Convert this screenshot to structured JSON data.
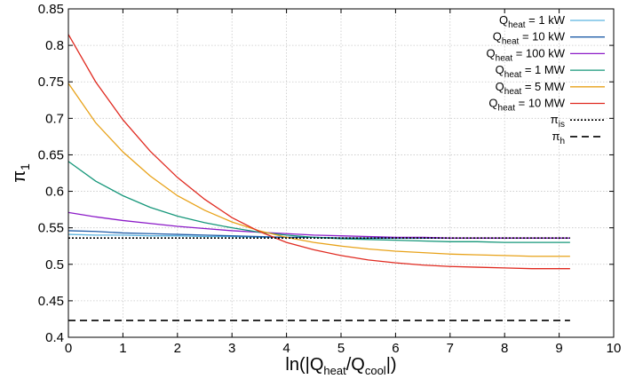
{
  "chart_data": {
    "type": "line",
    "xlabel": {
      "main": "ln(|Q",
      "sub1": "heat",
      "mid": "/Q",
      "sub2": "cool",
      "end": "|)"
    },
    "ylabel": {
      "main": "π",
      "sub": "1"
    },
    "xlim": [
      0,
      10
    ],
    "ylim": [
      0.4,
      0.85
    ],
    "xticks": [
      0,
      1,
      2,
      3,
      4,
      5,
      6,
      7,
      8,
      9,
      10
    ],
    "yticks": [
      0.4,
      0.45,
      0.5,
      0.55,
      0.6,
      0.65,
      0.7,
      0.75,
      0.8,
      0.85
    ],
    "xtick_labels": [
      "0",
      "1",
      "2",
      "3",
      "4",
      "5",
      "6",
      "7",
      "8",
      "9",
      "10"
    ],
    "ytick_labels": [
      "0.4",
      "0.45",
      "0.5",
      "0.55",
      "0.6",
      "0.65",
      "0.7",
      "0.75",
      "0.8",
      "0.85"
    ],
    "grid": true,
    "legend_position": "top-right",
    "x": [
      0,
      0.5,
      1,
      1.5,
      2,
      2.5,
      3,
      3.5,
      4,
      4.5,
      5,
      5.5,
      6,
      6.5,
      7,
      7.5,
      8,
      8.5,
      9,
      9.2
    ],
    "series": [
      {
        "name": "1 kW",
        "label_main": "Q",
        "label_sub": "heat",
        "label_rest": " = 1 kW",
        "color": "#5bb4e0",
        "dash": "solid",
        "values": [
          0.541,
          0.54,
          0.54,
          0.539,
          0.539,
          0.538,
          0.538,
          0.537,
          0.537,
          0.537,
          0.536,
          0.536,
          0.536,
          0.536,
          0.536,
          0.536,
          0.536,
          0.536,
          0.536,
          0.536
        ]
      },
      {
        "name": "10 kW",
        "label_main": "Q",
        "label_sub": "heat",
        "label_rest": " = 10 kW",
        "color": "#1f5da8",
        "dash": "solid",
        "values": [
          0.546,
          0.545,
          0.543,
          0.542,
          0.541,
          0.54,
          0.539,
          0.538,
          0.537,
          0.537,
          0.536,
          0.536,
          0.536,
          0.536,
          0.536,
          0.536,
          0.536,
          0.536,
          0.536,
          0.536
        ]
      },
      {
        "name": "100 kW",
        "label_main": "Q",
        "label_sub": "heat",
        "label_rest": " = 100 kW",
        "color": "#8c1bc8",
        "dash": "solid",
        "values": [
          0.571,
          0.565,
          0.56,
          0.556,
          0.552,
          0.549,
          0.546,
          0.544,
          0.542,
          0.54,
          0.539,
          0.538,
          0.537,
          0.537,
          0.536,
          0.536,
          0.536,
          0.536,
          0.536,
          0.536
        ]
      },
      {
        "name": "1 MW",
        "label_main": "Q",
        "label_sub": "heat",
        "label_rest": " = 1 MW",
        "color": "#16977a",
        "dash": "solid",
        "values": [
          0.641,
          0.614,
          0.594,
          0.578,
          0.566,
          0.557,
          0.55,
          0.544,
          0.54,
          0.537,
          0.535,
          0.534,
          0.533,
          0.532,
          0.531,
          0.531,
          0.53,
          0.53,
          0.53,
          0.53
        ]
      },
      {
        "name": "5 MW",
        "label_main": "Q",
        "label_sub": "heat",
        "label_rest": " = 5 MW",
        "color": "#e8a219",
        "dash": "solid",
        "values": [
          0.748,
          0.694,
          0.654,
          0.621,
          0.594,
          0.574,
          0.558,
          0.546,
          0.537,
          0.53,
          0.525,
          0.521,
          0.518,
          0.516,
          0.514,
          0.513,
          0.512,
          0.511,
          0.511,
          0.511
        ]
      },
      {
        "name": "10 MW",
        "label_main": "Q",
        "label_sub": "heat",
        "label_rest": " = 10 MW",
        "color": "#e02a20",
        "dash": "solid",
        "values": [
          0.815,
          0.75,
          0.698,
          0.655,
          0.619,
          0.589,
          0.564,
          0.545,
          0.53,
          0.52,
          0.512,
          0.506,
          0.502,
          0.499,
          0.497,
          0.496,
          0.495,
          0.494,
          0.494,
          0.494
        ]
      },
      {
        "name": "pi_is",
        "label_main": "π",
        "label_sub": "is",
        "label_rest": "",
        "color": "#000000",
        "dash": "dotted",
        "values": [
          0.536,
          0.536,
          0.536,
          0.536,
          0.536,
          0.536,
          0.536,
          0.536,
          0.536,
          0.536,
          0.536,
          0.536,
          0.536,
          0.536,
          0.536,
          0.536,
          0.536,
          0.536,
          0.536,
          0.536
        ]
      },
      {
        "name": "pi_h",
        "label_main": "π",
        "label_sub": "h",
        "label_rest": "",
        "color": "#000000",
        "dash": "dashed",
        "values": [
          0.423,
          0.423,
          0.423,
          0.423,
          0.423,
          0.423,
          0.423,
          0.423,
          0.423,
          0.423,
          0.423,
          0.423,
          0.423,
          0.423,
          0.423,
          0.423,
          0.423,
          0.423,
          0.423,
          0.423
        ]
      }
    ]
  }
}
